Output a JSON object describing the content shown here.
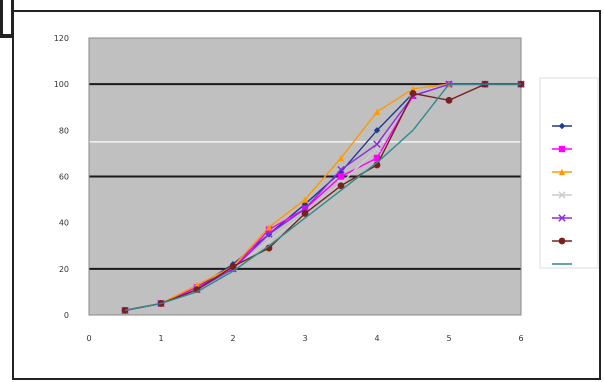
{
  "chart_data": {
    "type": "line",
    "title": "",
    "xlabel": "",
    "ylabel": "",
    "x_ticks": [
      "0",
      "1",
      "2",
      "3",
      "4",
      "5",
      "6"
    ],
    "y_ticks": [
      "0",
      "20",
      "40",
      "60",
      "80",
      "100",
      "120"
    ],
    "xlim": [
      0,
      6
    ],
    "ylim": [
      0,
      120
    ],
    "grid": "major horizontal lines, dark",
    "legend_position": "right",
    "legend_title": "",
    "series": [
      {
        "name": "",
        "color": "#1f3a93",
        "marker": "diamond",
        "x": [
          0.5,
          1.0,
          1.5,
          2.0,
          2.5,
          3.0,
          3.5,
          4.0,
          4.5,
          5.0,
          5.5,
          6.0
        ],
        "y": [
          2,
          5,
          12,
          22,
          35,
          48,
          62,
          80,
          96,
          100,
          100,
          100
        ]
      },
      {
        "name": "",
        "color": "#ff00ff",
        "marker": "square",
        "x": [
          0.5,
          1.0,
          1.5,
          2.0,
          2.5,
          3.0,
          3.5,
          4.0,
          4.5,
          5.0,
          5.5,
          6.0
        ],
        "y": [
          2,
          5,
          12,
          20,
          37,
          46,
          60,
          68,
          95,
          100,
          100,
          100
        ]
      },
      {
        "name": "",
        "color": "#ff9900",
        "marker": "triangle",
        "x": [
          0.5,
          1.0,
          1.5,
          2.0,
          2.5,
          3.0,
          3.5,
          4.0,
          4.5,
          5.0,
          5.5,
          6.0
        ],
        "y": [
          2,
          5,
          13,
          21,
          38,
          50,
          68,
          88,
          98,
          100,
          100,
          100
        ]
      },
      {
        "name": "",
        "color": "#cccccc",
        "marker": "x",
        "x": [
          0.5,
          1.0,
          1.5,
          2.0,
          2.5,
          3.0,
          3.5,
          4.0,
          4.5,
          5.0,
          5.5,
          6.0
        ],
        "y": [
          2,
          5,
          11,
          20,
          32,
          44,
          57,
          72,
          96,
          100,
          100,
          100
        ]
      },
      {
        "name": "",
        "color": "#8a2be2",
        "marker": "x",
        "x": [
          0.5,
          1.0,
          1.5,
          2.0,
          2.5,
          3.0,
          3.5,
          4.0,
          4.5,
          5.0,
          5.5,
          6.0
        ],
        "y": [
          2,
          5,
          11,
          20,
          35,
          46,
          63,
          74,
          95,
          100,
          100,
          100
        ]
      },
      {
        "name": "",
        "color": "#7a1f1f",
        "marker": "circle",
        "x": [
          0.5,
          1.0,
          1.5,
          2.0,
          2.5,
          3.0,
          3.5,
          4.0,
          4.5,
          5.0,
          5.5,
          6.0
        ],
        "y": [
          2,
          5,
          11,
          21,
          29,
          44,
          56,
          65,
          96,
          93,
          100,
          100
        ]
      },
      {
        "name": "",
        "color": "#2e8b8b",
        "marker": "none",
        "x": [
          0.5,
          1.0,
          1.5,
          2.0,
          2.5,
          3.0,
          3.5,
          4.0,
          4.5,
          5.0,
          5.5,
          6.0
        ],
        "y": [
          2,
          5,
          10,
          19,
          30,
          42,
          54,
          66,
          80,
          100,
          100,
          100
        ]
      }
    ]
  }
}
